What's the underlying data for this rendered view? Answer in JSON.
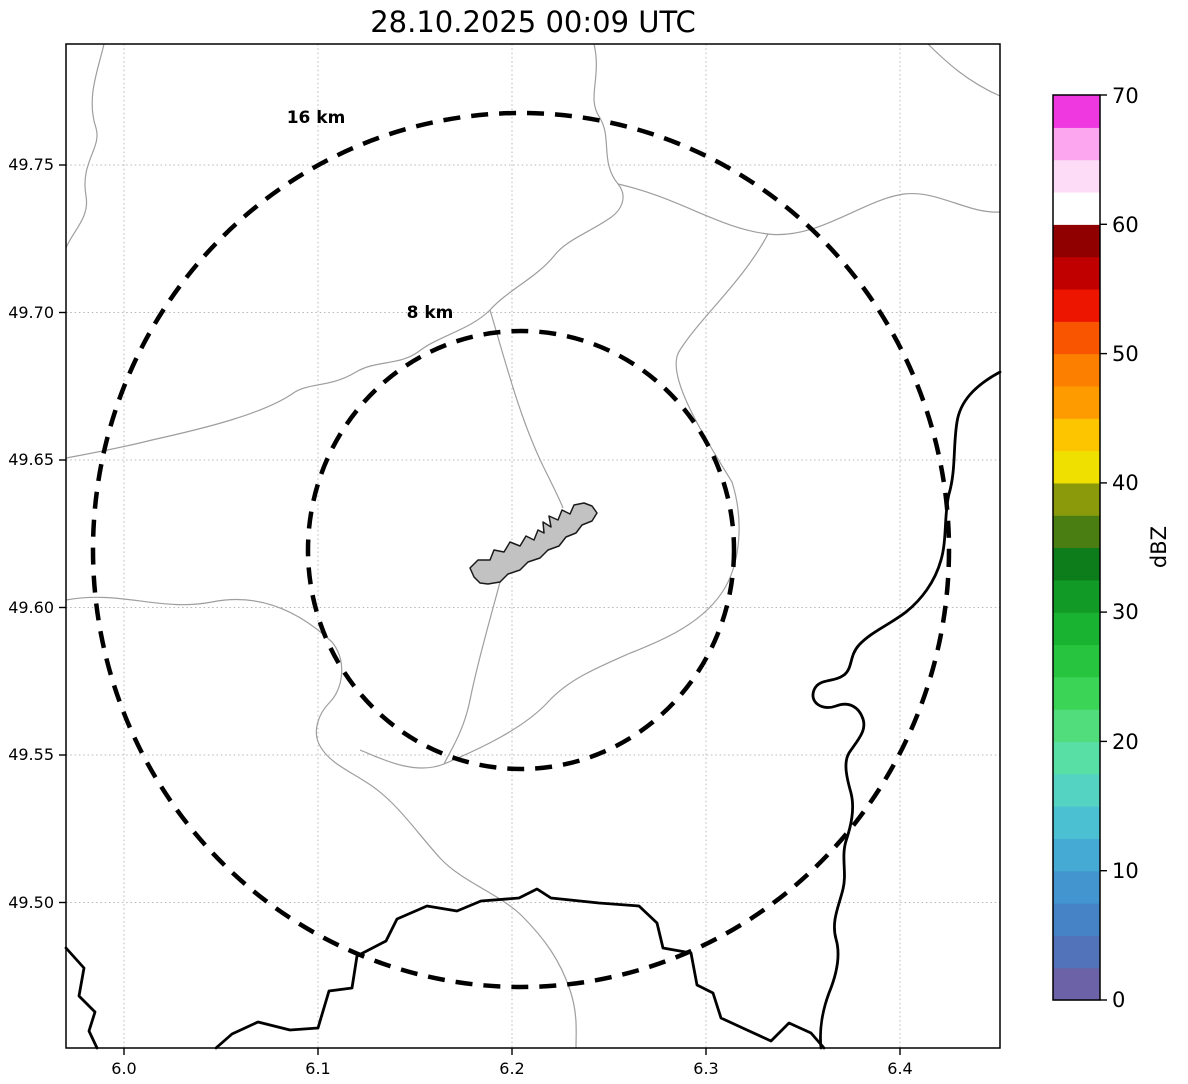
{
  "title": "28.10.2025 00:09 UTC",
  "axes": {
    "x_ticks": [
      "6.0",
      "6.1",
      "6.2",
      "6.3",
      "6.4"
    ],
    "y_ticks": [
      "49.75",
      "49.70",
      "49.65",
      "49.60",
      "49.55",
      "49.50"
    ]
  },
  "range_rings": {
    "outer_label": "16 km",
    "inner_label": "8 km"
  },
  "colorbar": {
    "label": "dBZ",
    "ticks": [
      "0",
      "10",
      "20",
      "30",
      "40",
      "50",
      "60",
      "70"
    ],
    "min": 0,
    "max": 70,
    "band_step_dbz": 2.5,
    "band_colors_bottom_to_top": [
      "#6b62a7",
      "#5272b9",
      "#4583c6",
      "#4295cf",
      "#45aad4",
      "#4cc0d3",
      "#54d3c3",
      "#58dfa6",
      "#52dd7d",
      "#3bd457",
      "#27c43f",
      "#1ab331",
      "#129a26",
      "#0d7c1b",
      "#4a7e12",
      "#8a9a0a",
      "#f0e000",
      "#fdc400",
      "#fd9b00",
      "#fd7f00",
      "#f95500",
      "#ee1500",
      "#c00000",
      "#900000",
      "#ffffff",
      "#fddcf7",
      "#fba6ee",
      "#ef38e0"
    ]
  },
  "map_colors": {
    "city_fill": "#c2c2c2",
    "admin_line": "#9e9e9e",
    "border_line": "#000000"
  }
}
